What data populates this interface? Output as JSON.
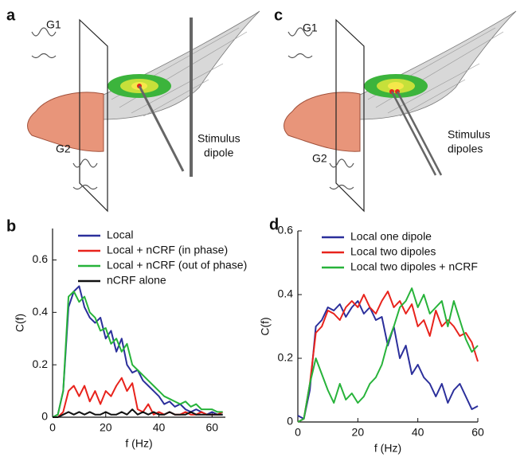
{
  "illustrations": [
    {
      "panel_label": "a",
      "electrode_labels": [
        "G1",
        "G2"
      ],
      "stimulus_label": [
        "Stimulus",
        "dipole"
      ]
    },
    {
      "panel_label": "c",
      "electrode_labels": [
        "G1",
        "G2"
      ],
      "stimulus_label": [
        "Stimulus",
        "dipoles"
      ]
    }
  ],
  "chart_data": [
    {
      "type": "line",
      "panel_label": "b",
      "x_label": "f (Hz)",
      "y_label": "C(f)",
      "xlim": [
        0,
        65
      ],
      "ylim": [
        0,
        0.72
      ],
      "xticks": [
        0,
        20,
        40,
        60
      ],
      "yticks": [
        0,
        0.2,
        0.4,
        0.6
      ],
      "x": [
        0,
        2,
        4,
        6,
        8,
        10,
        12,
        14,
        16,
        18,
        20,
        22,
        24,
        26,
        28,
        30,
        32,
        34,
        36,
        38,
        40,
        42,
        44,
        46,
        48,
        50,
        52,
        54,
        56,
        58,
        60,
        62,
        64
      ],
      "series": [
        {
          "name": "Local",
          "color": "#2b2f9b",
          "values": [
            0,
            0.01,
            0.1,
            0.42,
            0.48,
            0.5,
            0.42,
            0.38,
            0.36,
            0.38,
            0.3,
            0.33,
            0.25,
            0.3,
            0.2,
            0.17,
            0.18,
            0.14,
            0.12,
            0.1,
            0.08,
            0.05,
            0.06,
            0.04,
            0.05,
            0.03,
            0.02,
            0.03,
            0.02,
            0.01,
            0.02,
            0.01,
            0.01
          ]
        },
        {
          "name": "Local + nCRF (in phase)",
          "color": "#e8231c",
          "values": [
            0,
            0,
            0.02,
            0.1,
            0.12,
            0.08,
            0.12,
            0.06,
            0.1,
            0.05,
            0.1,
            0.08,
            0.12,
            0.15,
            0.1,
            0.13,
            0.03,
            0.02,
            0.05,
            0.01,
            0.02,
            0.01,
            0.02,
            0.01,
            0.01,
            0.02,
            0.01,
            0.01,
            0.02,
            0.01,
            0.01,
            0.01,
            0.02
          ]
        },
        {
          "name": "Local + nCRF (out of phase)",
          "color": "#27b33a",
          "values": [
            0,
            0.01,
            0.1,
            0.46,
            0.48,
            0.44,
            0.46,
            0.4,
            0.38,
            0.33,
            0.34,
            0.28,
            0.3,
            0.25,
            0.28,
            0.2,
            0.18,
            0.16,
            0.14,
            0.12,
            0.1,
            0.08,
            0.07,
            0.06,
            0.05,
            0.06,
            0.04,
            0.05,
            0.03,
            0.03,
            0.03,
            0.02,
            0.02
          ]
        },
        {
          "name": "nCRF alone",
          "color": "#111111",
          "values": [
            0,
            0,
            0.01,
            0.02,
            0.01,
            0.02,
            0.01,
            0.02,
            0.01,
            0.01,
            0.02,
            0.01,
            0.01,
            0.02,
            0.01,
            0.03,
            0.01,
            0.02,
            0.01,
            0.02,
            0.01,
            0.01,
            0.02,
            0.01,
            0.01,
            0.01,
            0.02,
            0.01,
            0.01,
            0.01,
            0.01,
            0.01,
            0.01
          ]
        }
      ]
    },
    {
      "type": "line",
      "panel_label": "d",
      "x_label": "f (Hz)",
      "y_label": "C(f)",
      "xlim": [
        0,
        60
      ],
      "ylim": [
        0,
        0.6
      ],
      "xticks": [
        0,
        20,
        40,
        60
      ],
      "yticks": [
        0,
        0.2,
        0.4,
        0.6
      ],
      "x": [
        0,
        2,
        4,
        6,
        8,
        10,
        12,
        14,
        16,
        18,
        20,
        22,
        24,
        26,
        28,
        30,
        32,
        34,
        36,
        38,
        40,
        42,
        44,
        46,
        48,
        50,
        52,
        54,
        56,
        58,
        60
      ],
      "series": [
        {
          "name": "Local one dipole",
          "color": "#2b2f9b",
          "values": [
            0.02,
            0.01,
            0.1,
            0.3,
            0.32,
            0.36,
            0.35,
            0.37,
            0.33,
            0.36,
            0.38,
            0.34,
            0.36,
            0.32,
            0.33,
            0.24,
            0.3,
            0.2,
            0.24,
            0.15,
            0.18,
            0.14,
            0.12,
            0.08,
            0.12,
            0.06,
            0.1,
            0.12,
            0.08,
            0.04,
            0.05
          ]
        },
        {
          "name": "Local two dipoles",
          "color": "#e8231c",
          "values": [
            0,
            0.01,
            0.12,
            0.28,
            0.3,
            0.35,
            0.34,
            0.32,
            0.36,
            0.38,
            0.36,
            0.4,
            0.36,
            0.34,
            0.38,
            0.41,
            0.36,
            0.38,
            0.34,
            0.37,
            0.3,
            0.32,
            0.27,
            0.35,
            0.3,
            0.32,
            0.3,
            0.27,
            0.28,
            0.25,
            0.19
          ]
        },
        {
          "name": "Local two dipoles + nCRF",
          "color": "#27b33a",
          "values": [
            0,
            0.01,
            0.12,
            0.2,
            0.15,
            0.1,
            0.06,
            0.12,
            0.07,
            0.09,
            0.06,
            0.08,
            0.12,
            0.14,
            0.18,
            0.25,
            0.3,
            0.36,
            0.38,
            0.42,
            0.36,
            0.4,
            0.34,
            0.36,
            0.38,
            0.3,
            0.38,
            0.32,
            0.26,
            0.22,
            0.24
          ]
        }
      ]
    }
  ]
}
